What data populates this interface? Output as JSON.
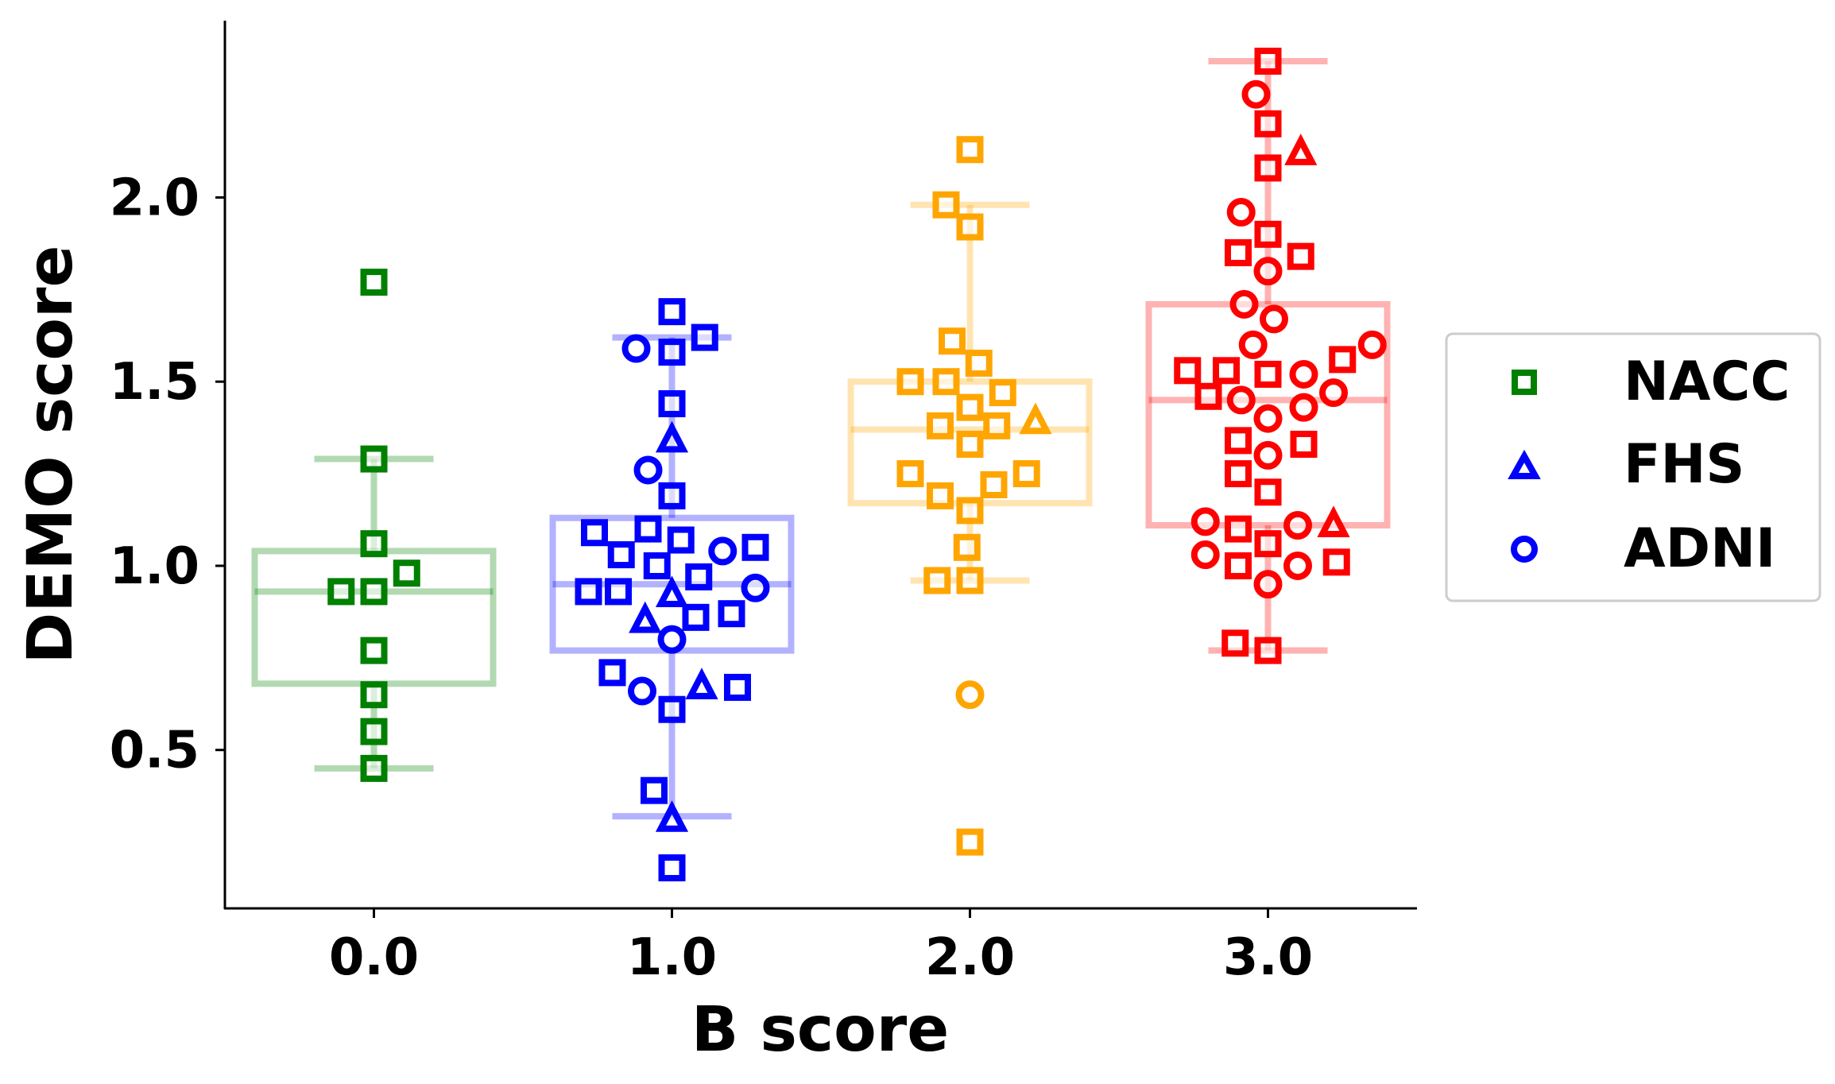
{
  "chart_data": {
    "type": "box+scatter",
    "xlabel": "B score",
    "ylabel": "DEMO score",
    "x_ticks": [
      "0.0",
      "1.0",
      "2.0",
      "3.0"
    ],
    "y_ticks": [
      "0.5",
      "1.0",
      "1.5",
      "2.0"
    ],
    "xlim": [
      -0.5,
      3.5
    ],
    "ylim": [
      0.07,
      2.48
    ],
    "grid": false,
    "legend_position": "right",
    "legend": [
      {
        "name": "NACC",
        "marker": "square",
        "color": "#008000"
      },
      {
        "name": "FHS",
        "marker": "triangle",
        "color": "#0000ff"
      },
      {
        "name": "ADNI",
        "marker": "circle",
        "color": "#0000ff"
      }
    ],
    "groups": [
      {
        "x": 0,
        "color": "#008000",
        "box": {
          "whisker_low": 0.45,
          "q1": 0.68,
          "median": 0.93,
          "q3": 1.04,
          "whisker_high": 1.29
        },
        "points": [
          {
            "x": 0.0,
            "y": 1.77,
            "m": "s"
          },
          {
            "x": 0.0,
            "y": 1.29,
            "m": "s"
          },
          {
            "x": 0.0,
            "y": 1.06,
            "m": "s"
          },
          {
            "x": -0.11,
            "y": 0.93,
            "m": "s"
          },
          {
            "x": 0.0,
            "y": 0.93,
            "m": "s"
          },
          {
            "x": 0.11,
            "y": 0.98,
            "m": "s"
          },
          {
            "x": 0.0,
            "y": 0.77,
            "m": "s"
          },
          {
            "x": 0.0,
            "y": 0.65,
            "m": "s"
          },
          {
            "x": 0.0,
            "y": 0.55,
            "m": "s"
          },
          {
            "x": 0.0,
            "y": 0.45,
            "m": "s"
          }
        ]
      },
      {
        "x": 1,
        "color": "#0000ff",
        "box": {
          "whisker_low": 0.32,
          "q1": 0.77,
          "median": 0.95,
          "q3": 1.13,
          "whisker_high": 1.62
        },
        "points": [
          {
            "x": 1.0,
            "y": 1.69,
            "m": "s"
          },
          {
            "x": 1.11,
            "y": 1.62,
            "m": "s"
          },
          {
            "x": 1.0,
            "y": 1.58,
            "m": "s"
          },
          {
            "x": 0.88,
            "y": 1.59,
            "m": "o"
          },
          {
            "x": 1.0,
            "y": 1.44,
            "m": "s"
          },
          {
            "x": 1.0,
            "y": 1.34,
            "m": "t"
          },
          {
            "x": 0.92,
            "y": 1.26,
            "m": "o"
          },
          {
            "x": 1.0,
            "y": 1.19,
            "m": "s"
          },
          {
            "x": 0.74,
            "y": 1.09,
            "m": "s"
          },
          {
            "x": 0.92,
            "y": 1.1,
            "m": "s"
          },
          {
            "x": 1.03,
            "y": 1.07,
            "m": "s"
          },
          {
            "x": 1.17,
            "y": 1.04,
            "m": "o"
          },
          {
            "x": 1.28,
            "y": 1.05,
            "m": "s"
          },
          {
            "x": 0.83,
            "y": 1.03,
            "m": "s"
          },
          {
            "x": 0.95,
            "y": 1.0,
            "m": "s"
          },
          {
            "x": 1.09,
            "y": 0.97,
            "m": "s"
          },
          {
            "x": 0.72,
            "y": 0.93,
            "m": "s"
          },
          {
            "x": 0.82,
            "y": 0.93,
            "m": "s"
          },
          {
            "x": 1.0,
            "y": 0.92,
            "m": "t"
          },
          {
            "x": 1.28,
            "y": 0.94,
            "m": "o"
          },
          {
            "x": 0.91,
            "y": 0.85,
            "m": "t"
          },
          {
            "x": 1.08,
            "y": 0.86,
            "m": "s"
          },
          {
            "x": 1.2,
            "y": 0.87,
            "m": "s"
          },
          {
            "x": 1.0,
            "y": 0.8,
            "m": "o"
          },
          {
            "x": 0.8,
            "y": 0.71,
            "m": "s"
          },
          {
            "x": 0.9,
            "y": 0.66,
            "m": "o"
          },
          {
            "x": 1.1,
            "y": 0.67,
            "m": "t"
          },
          {
            "x": 1.22,
            "y": 0.67,
            "m": "s"
          },
          {
            "x": 1.0,
            "y": 0.61,
            "m": "s"
          },
          {
            "x": 0.94,
            "y": 0.39,
            "m": "s"
          },
          {
            "x": 1.0,
            "y": 0.31,
            "m": "t"
          },
          {
            "x": 1.0,
            "y": 0.18,
            "m": "s"
          }
        ]
      },
      {
        "x": 2,
        "color": "#ffa500",
        "box": {
          "whisker_low": 0.96,
          "q1": 1.17,
          "median": 1.37,
          "q3": 1.5,
          "whisker_high": 1.98
        },
        "points": [
          {
            "x": 2.0,
            "y": 2.13,
            "m": "s"
          },
          {
            "x": 1.92,
            "y": 1.98,
            "m": "s"
          },
          {
            "x": 2.0,
            "y": 1.92,
            "m": "s"
          },
          {
            "x": 1.94,
            "y": 1.61,
            "m": "s"
          },
          {
            "x": 2.03,
            "y": 1.55,
            "m": "s"
          },
          {
            "x": 1.8,
            "y": 1.5,
            "m": "s"
          },
          {
            "x": 1.92,
            "y": 1.5,
            "m": "s"
          },
          {
            "x": 2.11,
            "y": 1.47,
            "m": "s"
          },
          {
            "x": 2.0,
            "y": 1.43,
            "m": "s"
          },
          {
            "x": 1.9,
            "y": 1.38,
            "m": "s"
          },
          {
            "x": 2.09,
            "y": 1.38,
            "m": "s"
          },
          {
            "x": 2.22,
            "y": 1.39,
            "m": "t"
          },
          {
            "x": 2.0,
            "y": 1.33,
            "m": "s"
          },
          {
            "x": 1.8,
            "y": 1.25,
            "m": "s"
          },
          {
            "x": 2.19,
            "y": 1.25,
            "m": "s"
          },
          {
            "x": 1.9,
            "y": 1.19,
            "m": "s"
          },
          {
            "x": 2.08,
            "y": 1.22,
            "m": "s"
          },
          {
            "x": 2.0,
            "y": 1.15,
            "m": "s"
          },
          {
            "x": 1.99,
            "y": 1.05,
            "m": "s"
          },
          {
            "x": 1.89,
            "y": 0.96,
            "m": "s"
          },
          {
            "x": 2.0,
            "y": 0.96,
            "m": "s"
          },
          {
            "x": 2.0,
            "y": 0.65,
            "m": "o"
          },
          {
            "x": 2.0,
            "y": 0.25,
            "m": "s"
          }
        ]
      },
      {
        "x": 3,
        "color": "#ff0000",
        "box": {
          "whisker_low": 0.77,
          "q1": 1.11,
          "median": 1.45,
          "q3": 1.71,
          "whisker_high": 2.37
        },
        "points": [
          {
            "x": 3.0,
            "y": 2.37,
            "m": "s"
          },
          {
            "x": 2.96,
            "y": 2.28,
            "m": "o"
          },
          {
            "x": 3.0,
            "y": 2.2,
            "m": "s"
          },
          {
            "x": 3.11,
            "y": 2.12,
            "m": "t"
          },
          {
            "x": 3.0,
            "y": 2.08,
            "m": "s"
          },
          {
            "x": 2.91,
            "y": 1.96,
            "m": "o"
          },
          {
            "x": 3.0,
            "y": 1.9,
            "m": "s"
          },
          {
            "x": 2.9,
            "y": 1.85,
            "m": "s"
          },
          {
            "x": 3.11,
            "y": 1.84,
            "m": "s"
          },
          {
            "x": 3.0,
            "y": 1.8,
            "m": "o"
          },
          {
            "x": 2.92,
            "y": 1.71,
            "m": "o"
          },
          {
            "x": 3.02,
            "y": 1.67,
            "m": "o"
          },
          {
            "x": 2.95,
            "y": 1.6,
            "m": "o"
          },
          {
            "x": 3.35,
            "y": 1.6,
            "m": "o"
          },
          {
            "x": 3.25,
            "y": 1.56,
            "m": "s"
          },
          {
            "x": 2.73,
            "y": 1.53,
            "m": "s"
          },
          {
            "x": 2.86,
            "y": 1.53,
            "m": "s"
          },
          {
            "x": 3.0,
            "y": 1.52,
            "m": "s"
          },
          {
            "x": 3.12,
            "y": 1.52,
            "m": "o"
          },
          {
            "x": 2.8,
            "y": 1.46,
            "m": "s"
          },
          {
            "x": 2.91,
            "y": 1.45,
            "m": "o"
          },
          {
            "x": 3.12,
            "y": 1.43,
            "m": "o"
          },
          {
            "x": 3.22,
            "y": 1.47,
            "m": "o"
          },
          {
            "x": 3.0,
            "y": 1.4,
            "m": "o"
          },
          {
            "x": 2.9,
            "y": 1.34,
            "m": "s"
          },
          {
            "x": 3.0,
            "y": 1.3,
            "m": "o"
          },
          {
            "x": 3.12,
            "y": 1.33,
            "m": "s"
          },
          {
            "x": 2.9,
            "y": 1.25,
            "m": "s"
          },
          {
            "x": 3.0,
            "y": 1.2,
            "m": "s"
          },
          {
            "x": 2.79,
            "y": 1.12,
            "m": "o"
          },
          {
            "x": 2.9,
            "y": 1.1,
            "m": "s"
          },
          {
            "x": 3.1,
            "y": 1.11,
            "m": "o"
          },
          {
            "x": 3.22,
            "y": 1.11,
            "m": "t"
          },
          {
            "x": 3.0,
            "y": 1.06,
            "m": "s"
          },
          {
            "x": 2.79,
            "y": 1.03,
            "m": "o"
          },
          {
            "x": 2.9,
            "y": 1.0,
            "m": "s"
          },
          {
            "x": 3.1,
            "y": 1.0,
            "m": "o"
          },
          {
            "x": 3.23,
            "y": 1.01,
            "m": "s"
          },
          {
            "x": 3.0,
            "y": 0.95,
            "m": "o"
          },
          {
            "x": 2.89,
            "y": 0.79,
            "m": "s"
          },
          {
            "x": 3.0,
            "y": 0.77,
            "m": "s"
          }
        ]
      }
    ]
  }
}
